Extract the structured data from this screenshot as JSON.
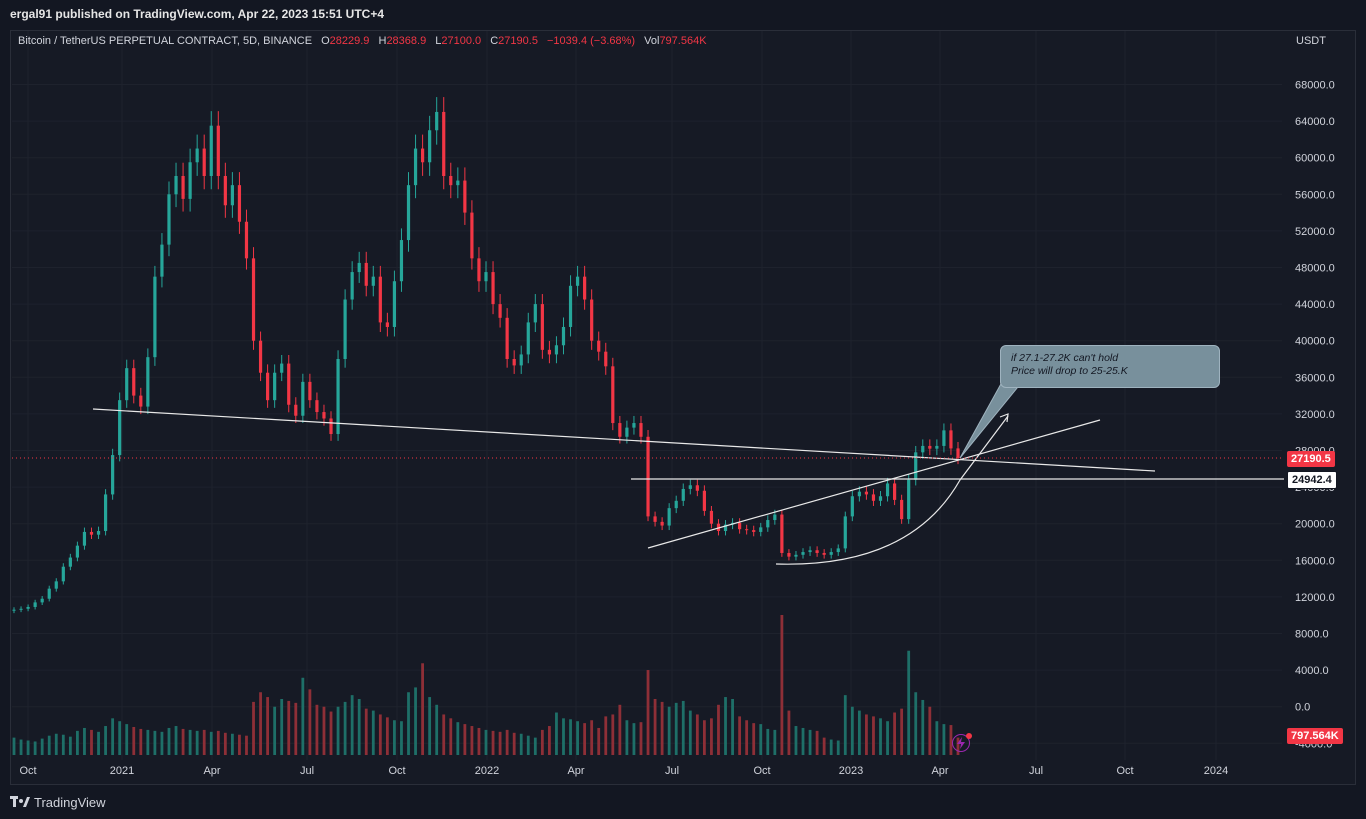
{
  "header": {
    "published": "ergal91 published on TradingView.com, Apr 22, 2023 15:51 UTC+4"
  },
  "legend": {
    "symbol": "Bitcoin / TetherUS PERPETUAL CONTRACT, 5D, BINANCE",
    "open_label": "O",
    "open": "28229.9",
    "high_label": "H",
    "high": "28368.9",
    "low_label": "L",
    "low": "27100.0",
    "close_label": "C",
    "close": "27190.5",
    "change": "−1039.4 (−3.68%)",
    "vol_label": "Vol",
    "vol": "797.564K"
  },
  "axis": {
    "currency": "USDT"
  },
  "note": {
    "line1": "if 27.1-27.2K can't hold",
    "line2": "Price will drop to 25-25.K"
  },
  "tags": {
    "last_price": "27190.5",
    "level": "24942.4",
    "volume": "797.564K"
  },
  "footer": {
    "brand": "TradingView"
  },
  "colors": {
    "up": "#26a69a",
    "down": "#f23645",
    "bg": "#131722",
    "grid": "#1e222d"
  },
  "chart_data": {
    "type": "candlestick",
    "title": "",
    "y_ticks": [
      "68000.0",
      "64000.0",
      "60000.0",
      "56000.0",
      "52000.0",
      "48000.0",
      "44000.0",
      "40000.0",
      "36000.0",
      "32000.0",
      "28000.0",
      "24000.0",
      "20000.0",
      "16000.0",
      "12000.0",
      "8000.0",
      "4000.0",
      "0.0",
      "-4000.0"
    ],
    "x_ticks": [
      "Oct",
      "2021",
      "Apr",
      "Jul",
      "Oct",
      "2022",
      "Apr",
      "Jul",
      "Oct",
      "2023",
      "Apr",
      "Jul",
      "Oct",
      "2024"
    ],
    "ylim": [
      -5000,
      72000
    ],
    "close": [
      10600,
      10700,
      10900,
      11400,
      11800,
      12900,
      13700,
      15300,
      16300,
      17600,
      19100,
      18800,
      19200,
      23200,
      27500,
      33500,
      37000,
      34000,
      32800,
      38200,
      47000,
      50500,
      56000,
      58000,
      55500,
      59500,
      61000,
      58000,
      63500,
      58000,
      54800,
      57000,
      53000,
      49000,
      40000,
      36500,
      33500,
      36500,
      37500,
      33000,
      31800,
      35500,
      33500,
      32200,
      31500,
      29800,
      38000,
      44500,
      47500,
      48500,
      46000,
      47000,
      42000,
      41500,
      46500,
      51000,
      57000,
      61000,
      59500,
      63000,
      65000,
      58000,
      57000,
      57500,
      54000,
      49000,
      46500,
      47500,
      44000,
      42500,
      38000,
      37300,
      38500,
      42000,
      44000,
      39000,
      38500,
      39500,
      41500,
      46000,
      47000,
      44500,
      40000,
      38800,
      37200,
      31000,
      29500,
      30500,
      31000,
      29500,
      20800,
      20200,
      19800,
      21700,
      22500,
      23800,
      24200,
      23600,
      21400,
      20000,
      19200,
      19900,
      20100,
      19400,
      19300,
      19100,
      19600,
      20400,
      21000,
      16800,
      16400,
      16600,
      16900,
      17100,
      16800,
      16600,
      16900,
      17300,
      20800,
      23000,
      23500,
      23200,
      22500,
      23000,
      24400,
      22600,
      20500,
      24800,
      27800,
      28500,
      28200,
      28500,
      30200,
      28229,
      27190
    ],
    "volume": [
      1800,
      1600,
      1500,
      1400,
      1700,
      2000,
      2200,
      2100,
      1900,
      2500,
      2800,
      2600,
      2400,
      3000,
      3800,
      3500,
      3200,
      2900,
      2700,
      2600,
      2500,
      2400,
      2800,
      3000,
      2700,
      2600,
      2500,
      2600,
      2400,
      2500,
      2300,
      2200,
      2100,
      2000,
      5500,
      6500,
      6000,
      5000,
      5800,
      5600,
      5400,
      8000,
      6800,
      5200,
      5000,
      4500,
      5000,
      5500,
      6200,
      5800,
      4800,
      4600,
      4200,
      3900,
      3600,
      3500,
      6500,
      7000,
      9500,
      6000,
      5200,
      4200,
      3800,
      3400,
      3200,
      3000,
      2800,
      2600,
      2500,
      2400,
      2600,
      2300,
      2200,
      2000,
      1800,
      2600,
      3000,
      4400,
      3800,
      3700,
      3500,
      3300,
      3600,
      2800,
      4000,
      4200,
      5200,
      3600,
      3300,
      3400,
      8800,
      5800,
      5500,
      5000,
      5400,
      5600,
      4600,
      4200,
      3600,
      3800,
      5200,
      6000,
      5800,
      4000,
      3600,
      3300,
      3200,
      2700,
      2600,
      14500,
      4600,
      3000,
      2800,
      2600,
      2500,
      1800,
      1600,
      1500,
      6200,
      5000,
      4600,
      4200,
      4000,
      3800,
      3500,
      4400,
      4800,
      10800,
      6500,
      5700,
      5000,
      3500,
      3200,
      3100,
      1800
    ]
  }
}
